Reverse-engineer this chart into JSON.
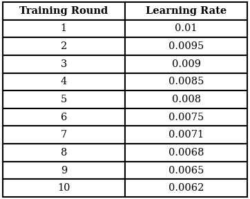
{
  "col_headers": [
    "Training Round",
    "Learning Rate"
  ],
  "rows": [
    [
      "1",
      "0.01"
    ],
    [
      "2",
      "0.0095"
    ],
    [
      "3",
      "0.009"
    ],
    [
      "4",
      "0.0085"
    ],
    [
      "5",
      "0.008"
    ],
    [
      "6",
      "0.0075"
    ],
    [
      "7",
      "0.0071"
    ],
    [
      "8",
      "0.0068"
    ],
    [
      "9",
      "0.0065"
    ],
    [
      "10",
      "0.0062"
    ]
  ],
  "fig_width": 3.62,
  "fig_height": 2.88,
  "dpi": 100,
  "background_color": "#ffffff",
  "header_fontsize": 10.5,
  "cell_fontsize": 10.5,
  "header_fontweight": "bold",
  "cell_fontweight": "normal",
  "line_width": 1.5
}
